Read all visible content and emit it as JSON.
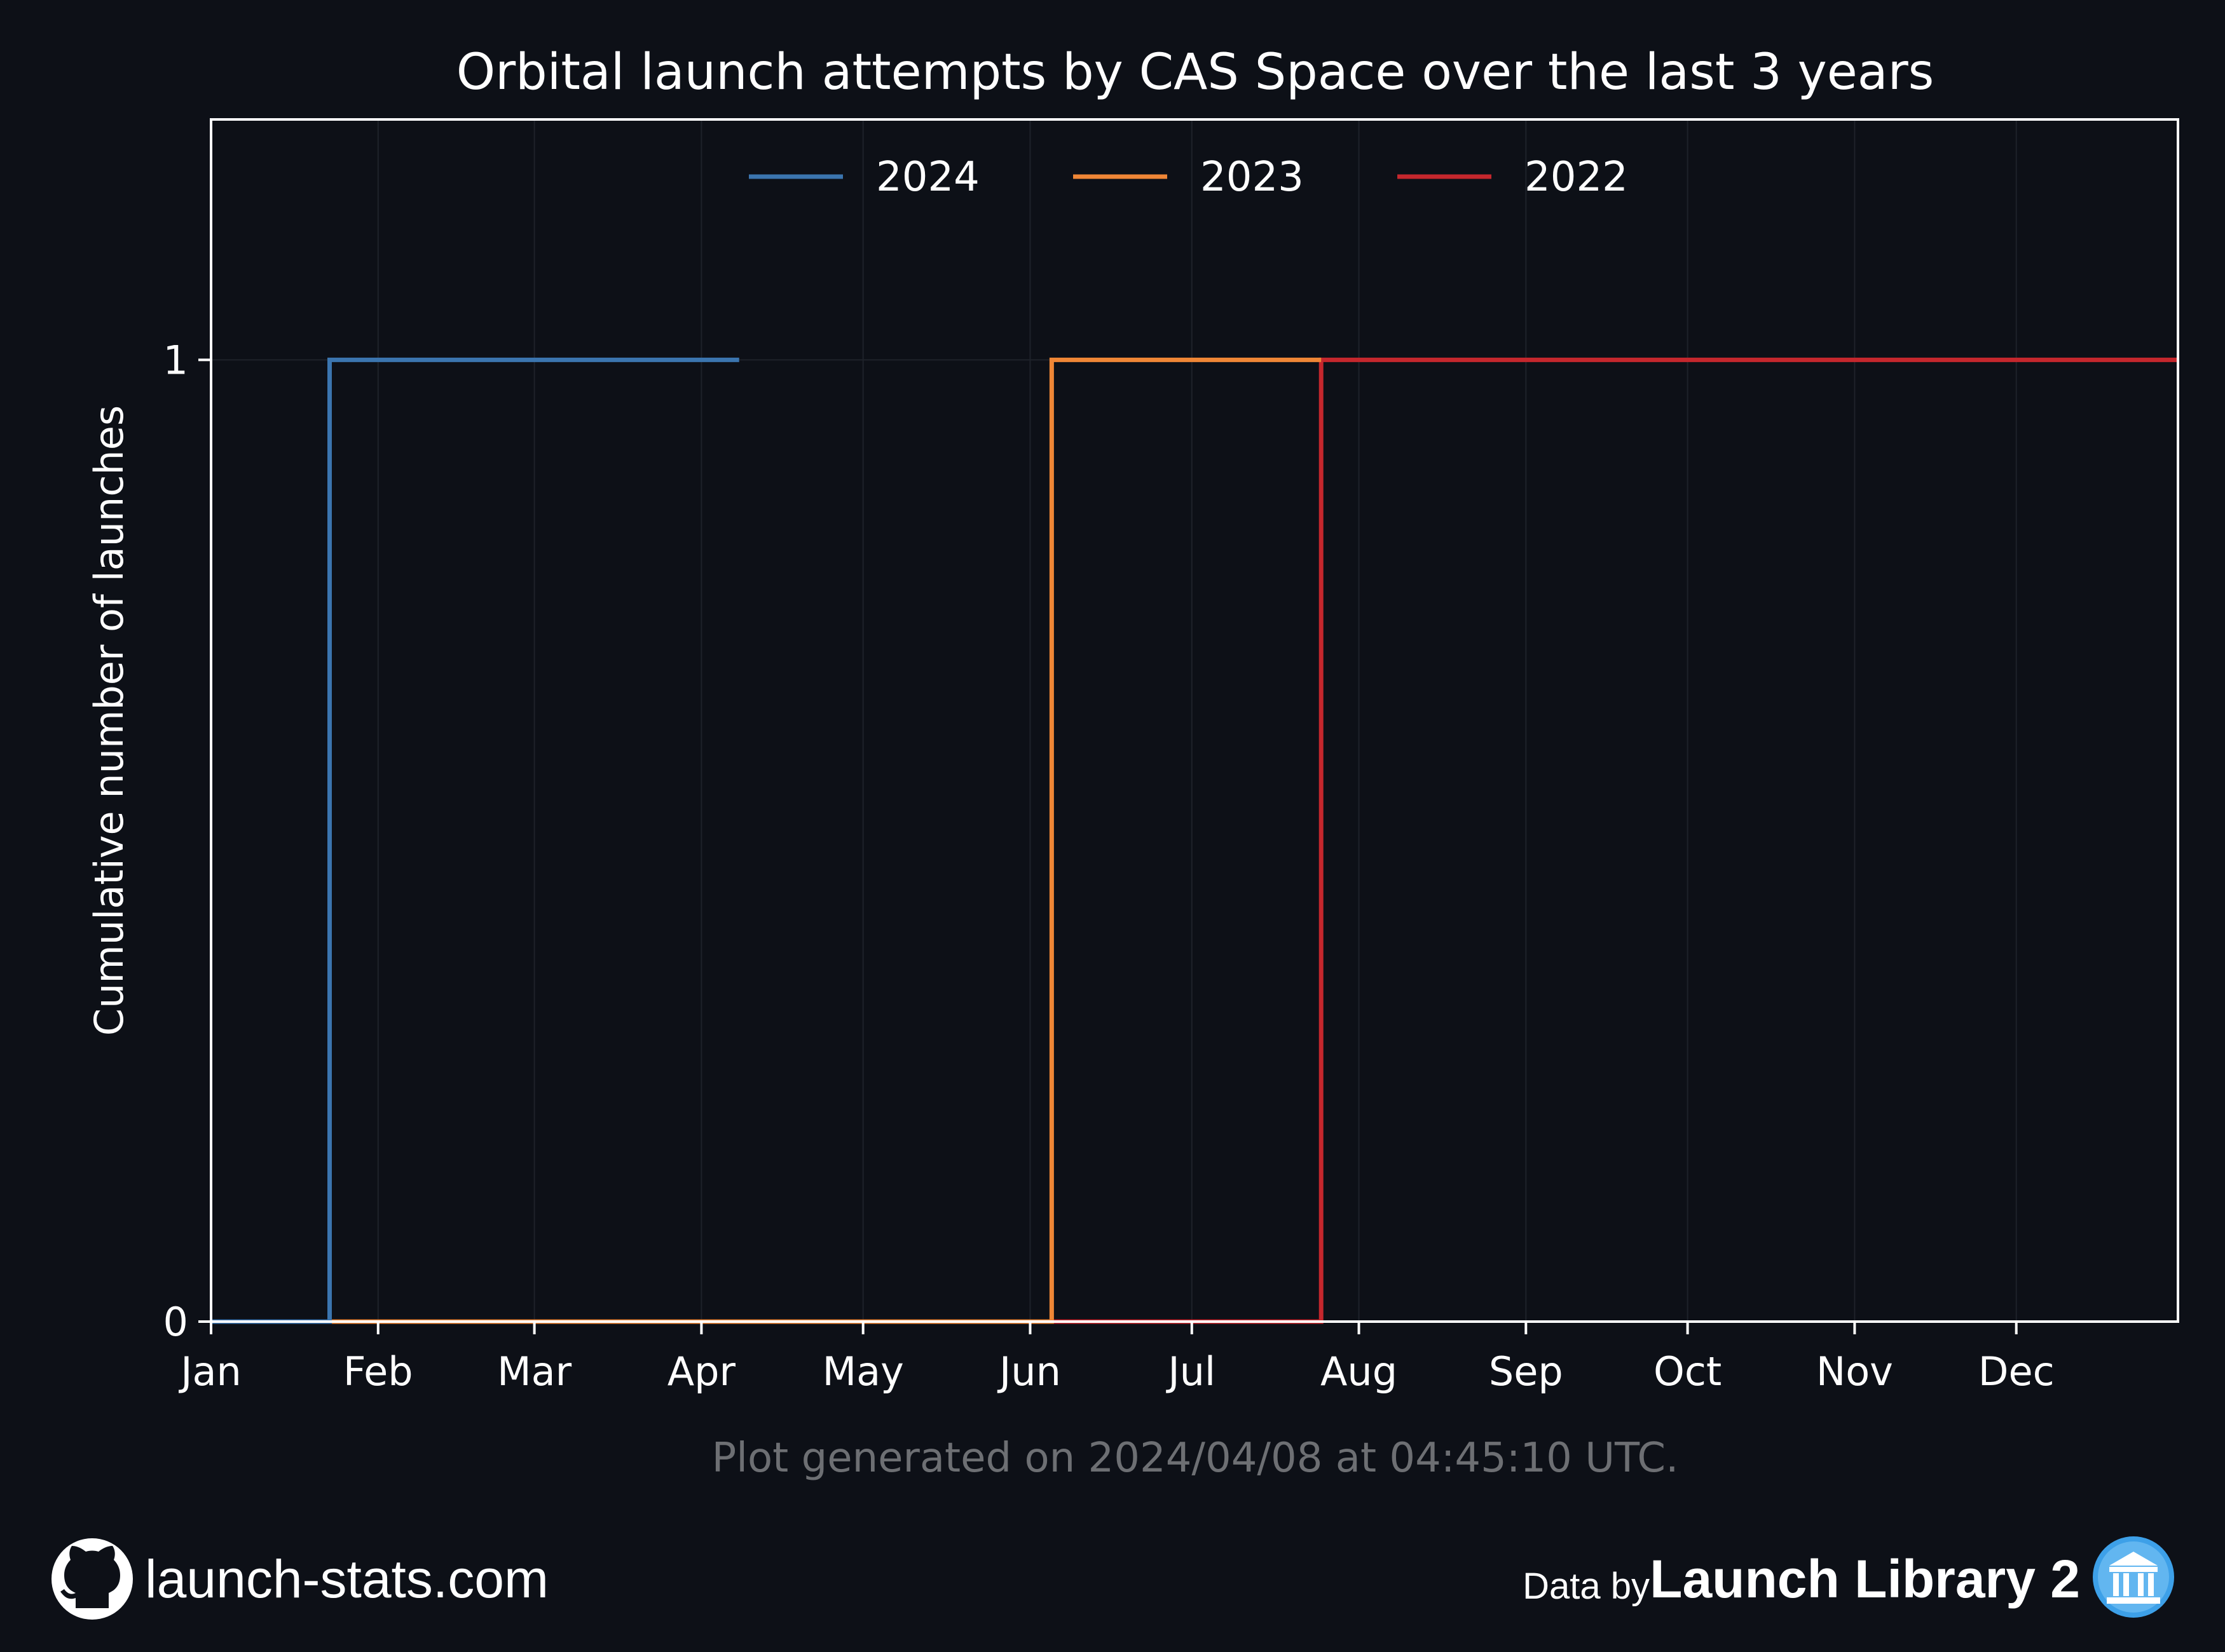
{
  "chart_data": {
    "type": "line",
    "step": true,
    "title": "Orbital launch attempts by CAS Space over the last 3 years",
    "xlabel": "",
    "ylabel": "Cumulative number of launches",
    "x_unit": "day of year",
    "xlim": [
      1,
      366
    ],
    "ylim": [
      0,
      1.25
    ],
    "x_ticks": [
      {
        "label": "Jan",
        "day": 1
      },
      {
        "label": "Feb",
        "day": 32
      },
      {
        "label": "Mar",
        "day": 61
      },
      {
        "label": "Apr",
        "day": 92
      },
      {
        "label": "May",
        "day": 122
      },
      {
        "label": "Jun",
        "day": 153
      },
      {
        "label": "Jul",
        "day": 183
      },
      {
        "label": "Aug",
        "day": 214
      },
      {
        "label": "Sep",
        "day": 245
      },
      {
        "label": "Oct",
        "day": 275
      },
      {
        "label": "Nov",
        "day": 306
      },
      {
        "label": "Dec",
        "day": 336
      }
    ],
    "y_ticks": [
      0,
      1
    ],
    "grid": true,
    "legend_position": "top-center",
    "series": [
      {
        "name": "2024",
        "color": "#3b75af",
        "points": [
          {
            "x": 1,
            "y": 0
          },
          {
            "x": 23,
            "y": 1
          },
          {
            "x": 99,
            "y": 1
          }
        ]
      },
      {
        "name": "2023",
        "color": "#ef8636",
        "points": [
          {
            "x": 1,
            "y": 0
          },
          {
            "x": 157,
            "y": 1
          },
          {
            "x": 207,
            "y": 1
          }
        ]
      },
      {
        "name": "2022",
        "color": "#c5272d",
        "points": [
          {
            "x": 1,
            "y": 0
          },
          {
            "x": 207,
            "y": 1
          },
          {
            "x": 366,
            "y": 1
          }
        ]
      }
    ]
  },
  "footer": {
    "generated": "Plot generated on 2024/04/08 at 04:45:10 UTC.",
    "site": "launch-stats.com",
    "data_by": "Data by",
    "brand": "Launch Library 2",
    "icons": [
      "github-icon",
      "launch-library-icon"
    ]
  }
}
